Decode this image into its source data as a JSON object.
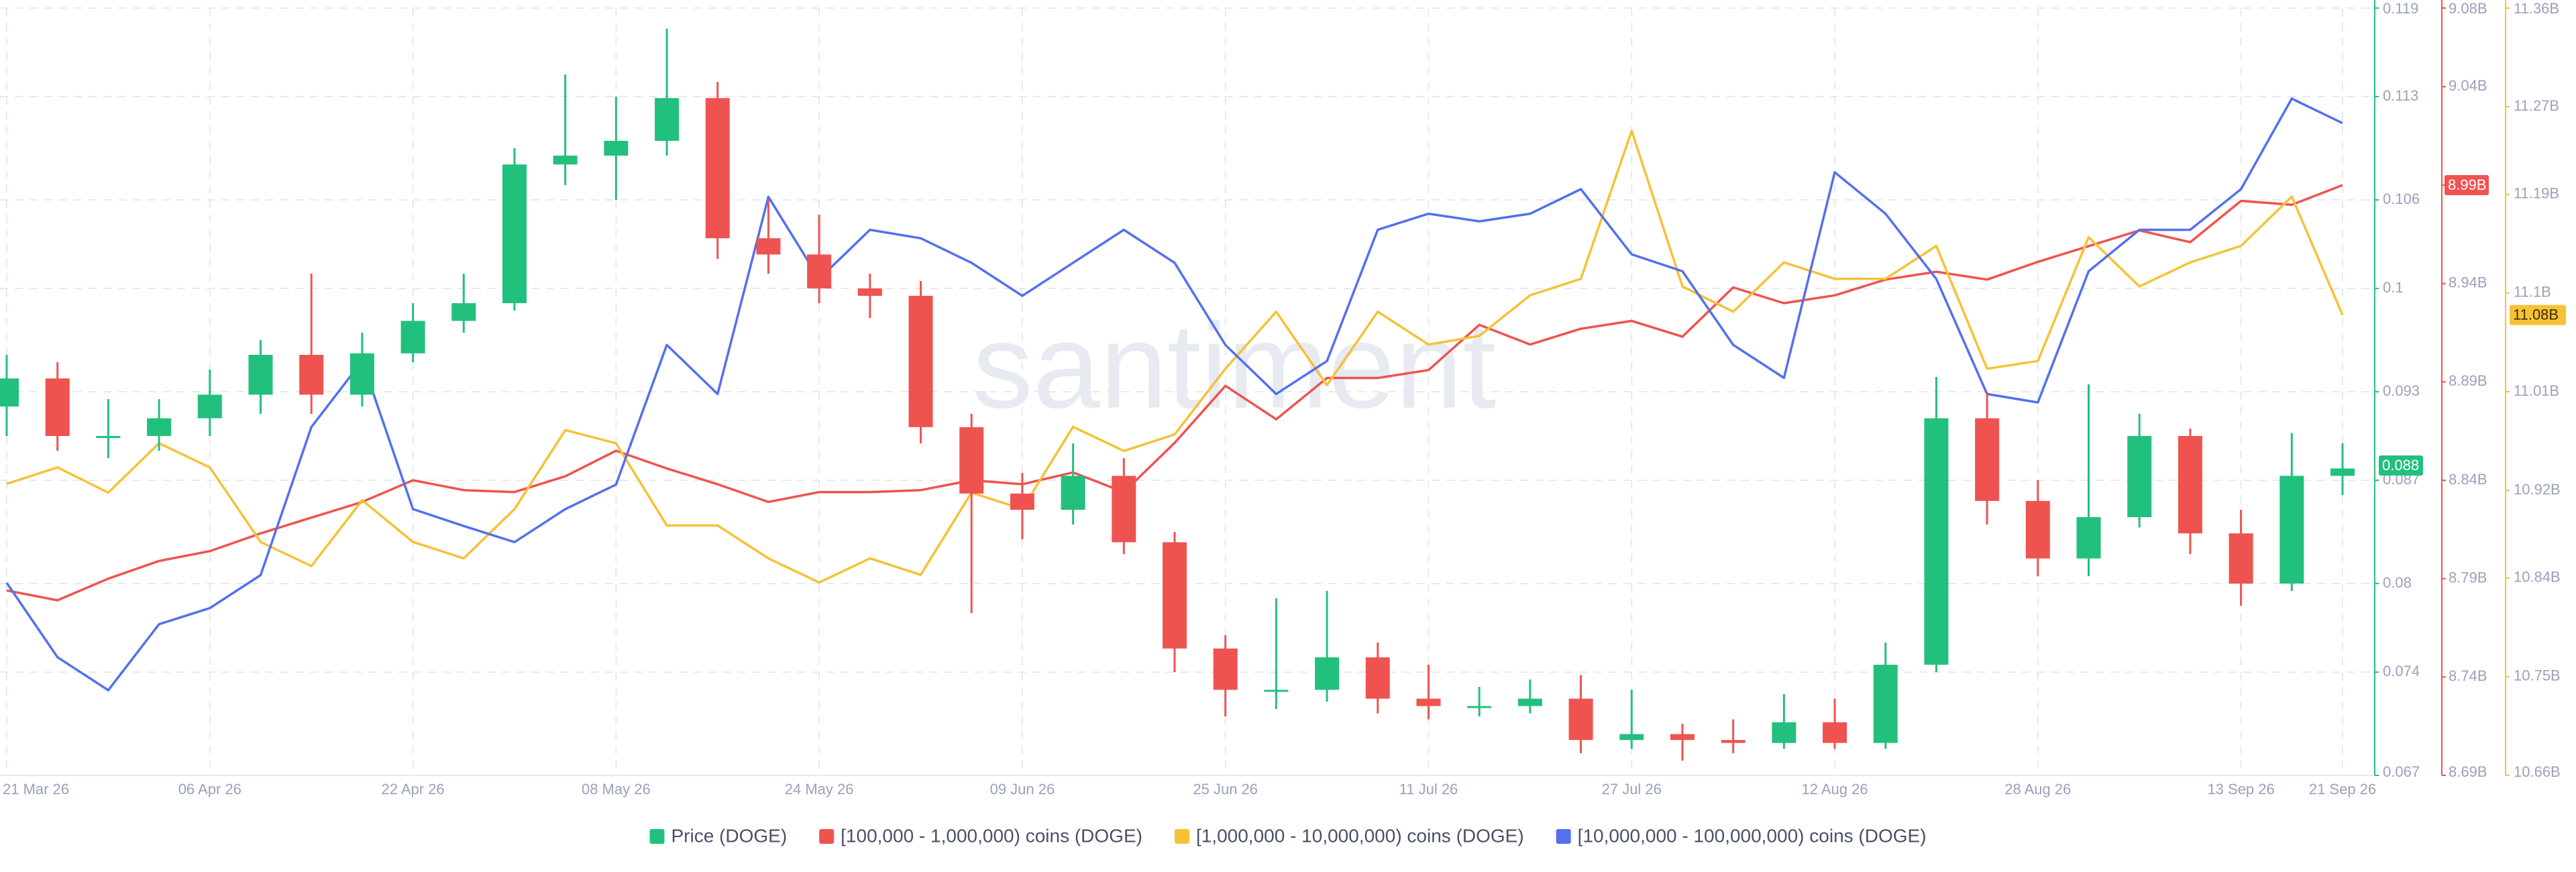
{
  "chart_data": {
    "type": "candlestick",
    "watermark": "santiment",
    "grid": true,
    "categories": [
      "21 Mar 26",
      null,
      null,
      null,
      "06 Apr 26",
      null,
      null,
      null,
      "22 Apr 26",
      null,
      null,
      null,
      "08 May 26",
      null,
      null,
      null,
      "24 May 26",
      null,
      null,
      null,
      "09 Jun 26",
      null,
      null,
      null,
      "25 Jun 26",
      null,
      null,
      null,
      "11 Jul 26",
      null,
      null,
      null,
      "27 Jul 26",
      null,
      null,
      null,
      "12 Aug 26",
      null,
      null,
      null,
      "28 Aug 26",
      null,
      null,
      null,
      "13 Sep 26",
      null,
      "21 Sep 26"
    ],
    "ylim": [
      0.067,
      0.119
    ],
    "yticks": [
      0.067,
      0.074,
      0.08,
      0.087,
      0.093,
      0.1,
      0.106,
      0.113,
      0.119
    ],
    "y2lim": [
      8690000000.0,
      9080000000.0
    ],
    "y2ticks": [
      {
        "value": 8690000000.0,
        "label": "8.69B"
      },
      {
        "value": 8740000000.0,
        "label": "8.74B"
      },
      {
        "value": 8790000000.0,
        "label": "8.79B"
      },
      {
        "value": 8840000000.0,
        "label": "8.84B"
      },
      {
        "value": 8890000000.0,
        "label": "8.89B"
      },
      {
        "value": 8940000000.0,
        "label": "8.94B"
      },
      {
        "value": 8990000000.0,
        "label": "8.99B"
      },
      {
        "value": 9040000000.0,
        "label": "9.04B"
      },
      {
        "value": 9080000000.0,
        "label": "9.08B"
      }
    ],
    "y3lim": [
      10660000000.0,
      11360000000.0
    ],
    "y3ticks": [
      {
        "value": 10660000000.0,
        "label": "10.66B"
      },
      {
        "value": 10750000000.0,
        "label": "10.75B"
      },
      {
        "value": 10840000000.0,
        "label": "10.84B"
      },
      {
        "value": 10920000000.0,
        "label": "10.92B"
      },
      {
        "value": 11010000000.0,
        "label": "11.01B"
      },
      {
        "value": 11100000000.0,
        "label": "11.1B"
      },
      {
        "value": 11190000000.0,
        "label": "11.19B"
      },
      {
        "value": 11270000000.0,
        "label": "11.27B"
      },
      {
        "value": 11360000000.0,
        "label": "11.36B"
      }
    ],
    "y4lim": [
      0,
      100
    ],
    "series": [
      {
        "name": "Price (DOGE)",
        "type": "candlestick",
        "axis": "y",
        "color": "#22c07d",
        "down_color": "#ef5350",
        "open": [
          0.092,
          0.0939,
          0.09,
          0.09,
          0.0912,
          0.0928,
          0.0955,
          0.0928,
          0.0956,
          0.0978,
          0.099,
          0.1084,
          0.109,
          0.11,
          0.1129,
          0.1034,
          0.1023,
          0.1,
          0.0995,
          0.0906,
          0.0861,
          0.085,
          0.0873,
          0.0828,
          0.0756,
          0.0728,
          0.0728,
          0.075,
          0.0722,
          0.0717,
          0.0717,
          0.0722,
          0.0694,
          0.0698,
          0.0694,
          0.0692,
          0.0706,
          0.0692,
          0.0745,
          0.0912,
          0.0856,
          0.0817,
          0.0845,
          0.09,
          0.0834,
          0.08,
          0.0873
        ],
        "high": [
          0.0955,
          0.095,
          0.0925,
          0.0925,
          0.0945,
          0.0965,
          0.101,
          0.097,
          0.099,
          0.101,
          0.1095,
          0.1145,
          0.113,
          0.1176,
          0.114,
          0.106,
          0.105,
          0.101,
          0.1005,
          0.0915,
          0.0875,
          0.0895,
          0.0885,
          0.0835,
          0.0765,
          0.079,
          0.0795,
          0.076,
          0.0745,
          0.073,
          0.0735,
          0.0738,
          0.0728,
          0.0705,
          0.0708,
          0.0725,
          0.0722,
          0.076,
          0.094,
          0.093,
          0.087,
          0.0935,
          0.0915,
          0.0905,
          0.085,
          0.0902,
          0.0895
        ],
        "low": [
          0.09,
          0.089,
          0.0885,
          0.089,
          0.09,
          0.0915,
          0.0915,
          0.092,
          0.095,
          0.097,
          0.0985,
          0.107,
          0.106,
          0.109,
          0.102,
          0.101,
          0.099,
          0.098,
          0.0895,
          0.078,
          0.083,
          0.084,
          0.082,
          0.074,
          0.071,
          0.0715,
          0.072,
          0.0712,
          0.0708,
          0.071,
          0.0712,
          0.0685,
          0.0688,
          0.068,
          0.0685,
          0.0688,
          0.0688,
          0.0688,
          0.074,
          0.084,
          0.0805,
          0.0805,
          0.0838,
          0.082,
          0.0785,
          0.0795,
          0.086
        ],
        "close": [
          0.0939,
          0.09,
          0.09,
          0.0912,
          0.0928,
          0.0955,
          0.0928,
          0.0956,
          0.0978,
          0.099,
          0.1084,
          0.109,
          0.11,
          0.1129,
          0.1034,
          0.1023,
          0.1,
          0.0995,
          0.0906,
          0.0861,
          0.085,
          0.0873,
          0.0828,
          0.0756,
          0.0728,
          0.0728,
          0.075,
          0.0722,
          0.0717,
          0.0717,
          0.0722,
          0.0694,
          0.0698,
          0.0694,
          0.0692,
          0.0706,
          0.0692,
          0.0745,
          0.0912,
          0.0856,
          0.0817,
          0.0845,
          0.09,
          0.0834,
          0.08,
          0.0873,
          0.0878
        ],
        "last_label": 0.088
      },
      {
        "name": "[100,000 - 1,000,000) coins (DOGE)",
        "type": "line",
        "axis": "y2",
        "color": "#ef5350",
        "values": [
          8784000000.0,
          8779000000.0,
          8790000000.0,
          8799000000.0,
          8804000000.0,
          8813000000.0,
          8821000000.0,
          8829000000.0,
          8840000000.0,
          8835000000.0,
          8834000000.0,
          8842000000.0,
          8855000000.0,
          8846000000.0,
          8838000000.0,
          8829000000.0,
          8834000000.0,
          8834000000.0,
          8835000000.0,
          8840000000.0,
          8838000000.0,
          8844000000.0,
          8834000000.0,
          8859000000.0,
          8888000000.0,
          8871000000.0,
          8892000000.0,
          8892000000.0,
          8896000000.0,
          8919000000.0,
          8909000000.0,
          8917000000.0,
          8921000000.0,
          8913000000.0,
          8938000000.0,
          8930000000.0,
          8934000000.0,
          8942000000.0,
          8946000000.0,
          8942000000.0,
          8951000000.0,
          8959000000.0,
          8967000000.0,
          8961000000.0,
          8982000000.0,
          8980000000.0,
          8990000000.0
        ],
        "last_label": {
          "value": 8990000000.0,
          "label": "8.99B"
        }
      },
      {
        "name": "[1,000,000 - 10,000,000) coins (DOGE)",
        "type": "line",
        "axis": "y3",
        "color": "#f7c137",
        "values": [
          10926000000.0,
          10941000000.0,
          10918000000.0,
          10963000000.0,
          10941000000.0,
          10873000000.0,
          10851000000.0,
          10911000000.0,
          10873000000.0,
          10858000000.0,
          10903000000.0,
          10975000000.0,
          10963000000.0,
          10888000000.0,
          10888000000.0,
          10858000000.0,
          10836000000.0,
          10858000000.0,
          10843000000.0,
          10918000000.0,
          10903000000.0,
          10978000000.0,
          10956000000.0,
          10971000000.0,
          11031000000.0,
          11083000000.0,
          11016000000.0,
          11083000000.0,
          11053000000.0,
          11061000000.0,
          11098000000.0,
          11113000000.0,
          11248000000.0,
          11106000000.0,
          11083000000.0,
          11128000000.0,
          11113000000.0,
          11113000000.0,
          11143000000.0,
          11031000000.0,
          11038000000.0,
          11151000000.0,
          11106000000.0,
          11128000000.0,
          11143000000.0,
          11188000000.0,
          11080000000.0
        ],
        "last_label": {
          "value": 11080000000.0,
          "label": "11.08B"
        }
      },
      {
        "name": "[10,000,000 - 100,000,000) coins (DOGE)",
        "type": "line",
        "axis": "y4",
        "color": "#5470ee",
        "values": [
          25.1,
          15.4,
          11.1,
          19.7,
          21.8,
          26.1,
          45.4,
          54.0,
          34.7,
          32.5,
          30.4,
          34.7,
          37.9,
          56.1,
          49.7,
          75.4,
          64.7,
          71.1,
          70.0,
          66.8,
          62.5,
          66.8,
          71.1,
          66.8,
          56.1,
          49.7,
          54.0,
          71.1,
          73.2,
          72.2,
          73.2,
          76.4,
          67.9,
          65.7,
          56.1,
          51.8,
          78.6,
          73.2,
          64.7,
          49.7,
          48.6,
          65.7,
          71.1,
          71.1,
          76.4,
          88.2,
          85.0
        ]
      }
    ]
  }
}
